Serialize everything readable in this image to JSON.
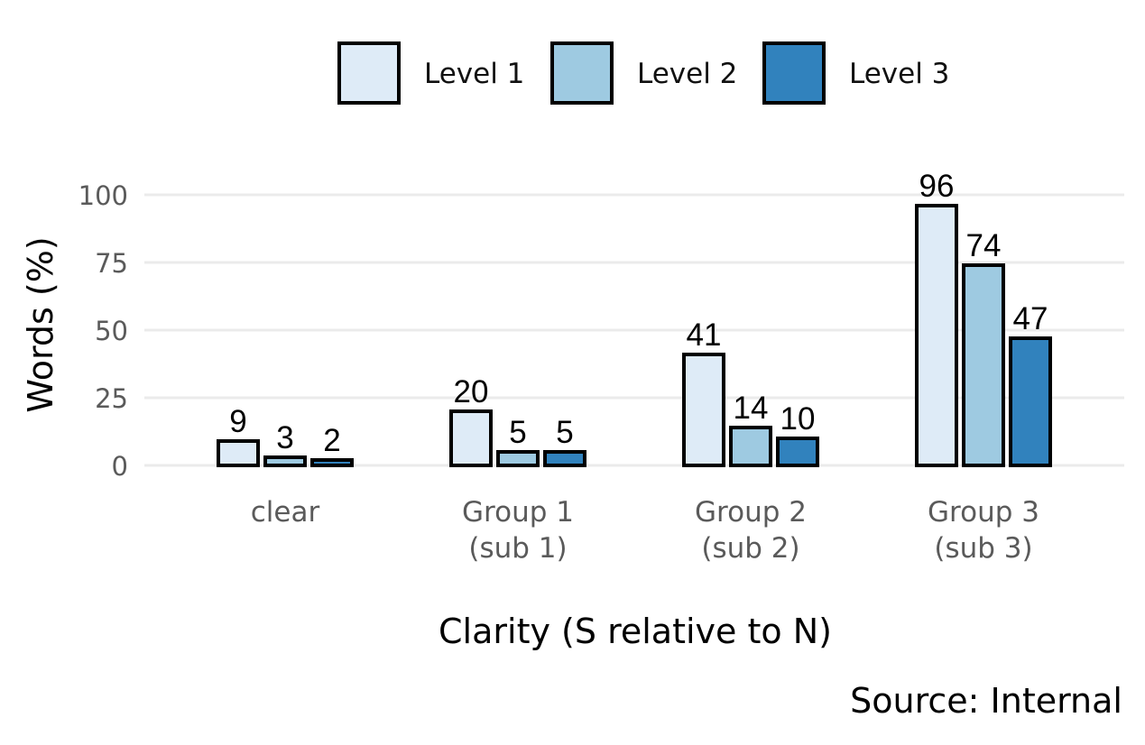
{
  "chart_data": {
    "type": "bar",
    "categories": [
      [
        "clear"
      ],
      [
        "Group 1",
        "(sub 1)"
      ],
      [
        "Group 2",
        "(sub 2)"
      ],
      [
        "Group 3",
        "(sub 3)"
      ]
    ],
    "series": [
      {
        "name": "Level 1",
        "color": "#deebf7",
        "values": [
          9,
          20,
          41,
          96
        ]
      },
      {
        "name": "Level 2",
        "color": "#9ecae1",
        "values": [
          3,
          5,
          14,
          74
        ]
      },
      {
        "name": "Level 3",
        "color": "#3182bd",
        "values": [
          2,
          5,
          10,
          47
        ]
      }
    ],
    "xlabel": "Clarity (S relative to N)",
    "ylabel": "Words (%)",
    "caption": "Source: Internal",
    "ylim": [
      0,
      100
    ],
    "yticks": [
      0,
      25,
      50,
      75,
      100
    ],
    "grid": true,
    "legend_position": "top",
    "data_labels": true
  }
}
